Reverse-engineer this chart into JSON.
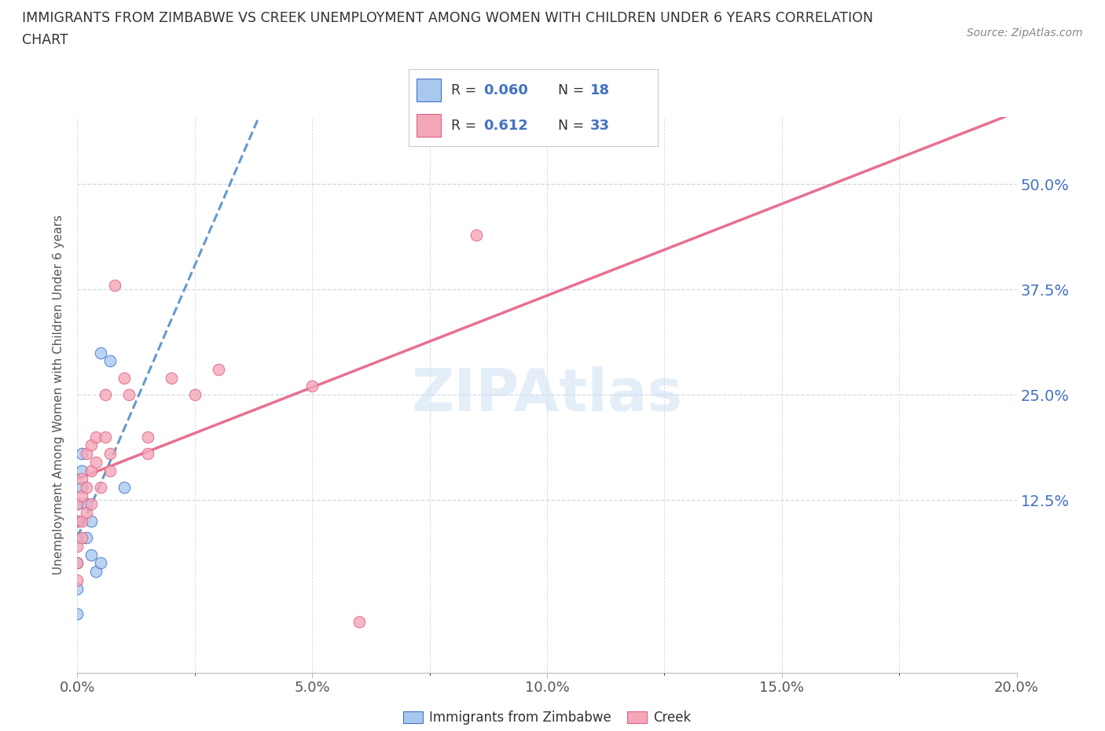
{
  "title_line1": "IMMIGRANTS FROM ZIMBABWE VS CREEK UNEMPLOYMENT AMONG WOMEN WITH CHILDREN UNDER 6 YEARS CORRELATION",
  "title_line2": "CHART",
  "source": "Source: ZipAtlas.com",
  "watermark": "ZIPAtlas",
  "ylabel": "Unemployment Among Women with Children Under 6 years",
  "xlim": [
    0.0,
    0.2
  ],
  "ylim": [
    -0.08,
    0.58
  ],
  "ytick_labels": [
    "12.5%",
    "25.0%",
    "37.5%",
    "50.0%"
  ],
  "ytick_values": [
    0.125,
    0.25,
    0.375,
    0.5
  ],
  "color_blue": "#a8c8f0",
  "color_blue_dark": "#4472c4",
  "color_pink": "#f4a7b9",
  "color_pink_dark": "#e06080",
  "color_trend_blue": "#6699cc",
  "color_trend_pink": "#e87090",
  "scatter_blue_x": [
    0.0,
    0.0,
    0.0,
    0.0,
    0.0,
    0.0,
    0.001,
    0.001,
    0.001,
    0.002,
    0.002,
    0.003,
    0.003,
    0.004,
    0.005,
    0.005,
    0.007,
    0.01
  ],
  "scatter_blue_y": [
    0.08,
    0.1,
    0.12,
    0.05,
    0.02,
    -0.01,
    0.14,
    0.16,
    0.18,
    0.12,
    0.08,
    0.1,
    0.06,
    0.04,
    0.3,
    0.05,
    0.29,
    0.14
  ],
  "scatter_pink_x": [
    0.0,
    0.0,
    0.0,
    0.0,
    0.0,
    0.001,
    0.001,
    0.001,
    0.001,
    0.002,
    0.002,
    0.002,
    0.003,
    0.003,
    0.003,
    0.004,
    0.004,
    0.005,
    0.006,
    0.006,
    0.007,
    0.007,
    0.008,
    0.01,
    0.011,
    0.015,
    0.015,
    0.02,
    0.025,
    0.03,
    0.05,
    0.06,
    0.085
  ],
  "scatter_pink_y": [
    0.1,
    0.07,
    0.05,
    0.03,
    0.12,
    0.15,
    0.13,
    0.1,
    0.08,
    0.14,
    0.18,
    0.11,
    0.16,
    0.19,
    0.12,
    0.17,
    0.2,
    0.14,
    0.2,
    0.25,
    0.18,
    0.16,
    0.38,
    0.27,
    0.25,
    0.2,
    0.18,
    0.27,
    0.25,
    0.28,
    0.26,
    -0.02,
    0.44
  ],
  "label_zimbabwe": "Immigrants from Zimbabwe",
  "label_creek": "Creek",
  "background_color": "#ffffff",
  "grid_color": "#d0d8e8",
  "title_color": "#333333",
  "axis_color": "#555555",
  "value_color": "#4472c4",
  "figsize": [
    14.06,
    9.3
  ],
  "dpi": 100
}
